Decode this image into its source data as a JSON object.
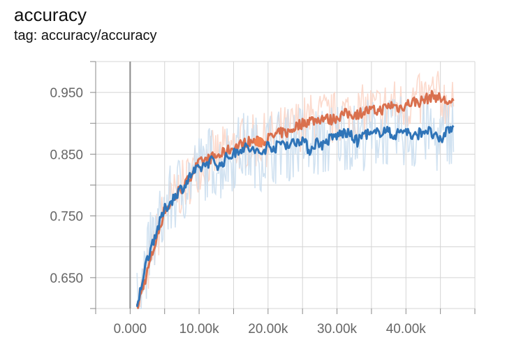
{
  "card": {
    "title": "accuracy",
    "tag": "tag: accuracy/accuracy"
  },
  "chart_data": {
    "type": "line",
    "title": "accuracy",
    "xlabel": "",
    "ylabel": "",
    "xlim": [
      -5000,
      50000
    ],
    "ylim": [
      0.6,
      1.0
    ],
    "x_ticks": [
      0,
      10000,
      20000,
      30000,
      40000
    ],
    "x_tick_labels": [
      "0.000",
      "10.00k",
      "20.00k",
      "30.00k",
      "40.00k"
    ],
    "y_ticks": [
      0.65,
      0.75,
      0.85,
      0.95
    ],
    "y_tick_labels": [
      "0.650",
      "0.750",
      "0.850",
      "0.950"
    ],
    "grid": true,
    "legend": "none",
    "highlight_point": {
      "x": 18700,
      "y": 0.87,
      "color": "#f2804f"
    },
    "series": [
      {
        "color": "#d9704e",
        "raw_color": "#fcd3c4",
        "x": [
          1000,
          2000,
          3000,
          4000,
          5000,
          6000,
          7000,
          8000,
          9000,
          10000,
          11000,
          12000,
          13000,
          14000,
          15000,
          16000,
          17000,
          18000,
          19000,
          20000,
          21000,
          22000,
          23000,
          24000,
          25000,
          26000,
          27000,
          28000,
          29000,
          30000,
          31000,
          32000,
          33000,
          34000,
          35000,
          36000,
          37000,
          38000,
          39000,
          40000,
          41000,
          42000,
          43000,
          44000,
          45000,
          46000,
          47000
        ],
        "values": [
          0.6,
          0.64,
          0.68,
          0.72,
          0.76,
          0.77,
          0.79,
          0.8,
          0.82,
          0.835,
          0.84,
          0.845,
          0.848,
          0.855,
          0.86,
          0.865,
          0.87,
          0.87,
          0.87,
          0.875,
          0.88,
          0.885,
          0.885,
          0.895,
          0.9,
          0.905,
          0.905,
          0.91,
          0.905,
          0.91,
          0.915,
          0.915,
          0.915,
          0.92,
          0.92,
          0.92,
          0.925,
          0.93,
          0.925,
          0.93,
          0.935,
          0.935,
          0.94,
          0.945,
          0.94,
          0.935,
          0.93
        ]
      },
      {
        "color": "#2f74b8",
        "raw_color": "#c9ddef",
        "x": [
          1000,
          2000,
          3000,
          4000,
          5000,
          6000,
          7000,
          8000,
          9000,
          10000,
          11000,
          12000,
          13000,
          14000,
          15000,
          16000,
          17000,
          18000,
          19000,
          20000,
          21000,
          22000,
          23000,
          24000,
          25000,
          26000,
          27000,
          28000,
          29000,
          30000,
          31000,
          32000,
          33000,
          34000,
          35000,
          36000,
          37000,
          38000,
          39000,
          40000,
          41000,
          42000,
          43000,
          44000,
          45000,
          46000,
          47000
        ],
        "values": [
          0.6,
          0.66,
          0.7,
          0.73,
          0.76,
          0.775,
          0.79,
          0.8,
          0.82,
          0.825,
          0.835,
          0.84,
          0.83,
          0.845,
          0.85,
          0.86,
          0.86,
          0.855,
          0.85,
          0.865,
          0.86,
          0.87,
          0.865,
          0.87,
          0.875,
          0.855,
          0.87,
          0.865,
          0.875,
          0.88,
          0.885,
          0.88,
          0.87,
          0.885,
          0.88,
          0.885,
          0.89,
          0.88,
          0.885,
          0.89,
          0.875,
          0.885,
          0.89,
          0.88,
          0.87,
          0.89,
          0.895
        ]
      }
    ]
  }
}
